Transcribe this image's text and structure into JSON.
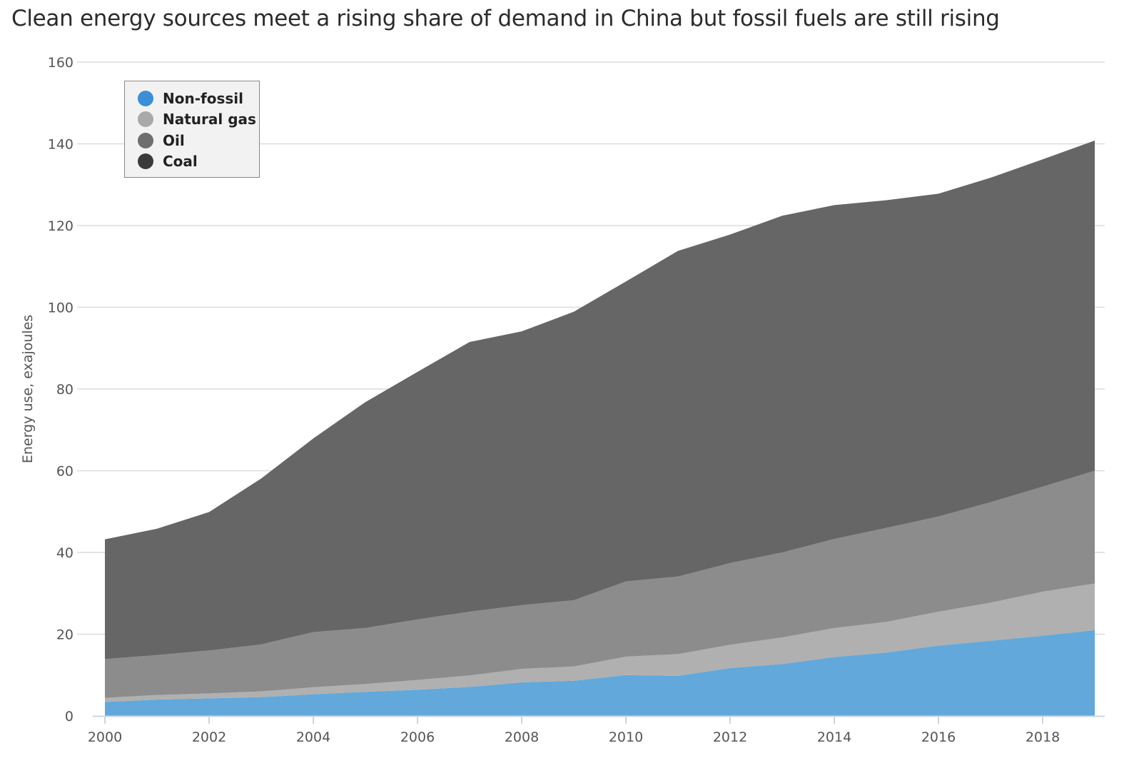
{
  "title": "Clean energy sources meet a rising share of demand in China but fossil fuels are still rising",
  "chart_data": {
    "type": "area",
    "stacked": true,
    "title": "Clean energy sources meet a rising share of demand in China but fossil fuels are still rising",
    "xlabel": "",
    "ylabel": "Energy use, exajoules",
    "xlim": [
      2000,
      2019
    ],
    "ylim": [
      0,
      160
    ],
    "yticks": [
      0,
      20,
      40,
      60,
      80,
      100,
      120,
      140,
      160
    ],
    "xticks": [
      2000,
      2002,
      2004,
      2006,
      2008,
      2010,
      2012,
      2014,
      2016,
      2018
    ],
    "grid": true,
    "legend_position": "top-left",
    "x": [
      2000,
      2001,
      2002,
      2003,
      2004,
      2005,
      2006,
      2007,
      2008,
      2009,
      2010,
      2011,
      2012,
      2013,
      2014,
      2015,
      2016,
      2017,
      2018,
      2019
    ],
    "series": [
      {
        "name": "Non-fossil",
        "color": "#62a8da",
        "legend_color": "#3a8fd6",
        "values": [
          3.4,
          4.0,
          4.3,
          4.6,
          5.3,
          5.9,
          6.4,
          7.1,
          8.2,
          8.6,
          10.0,
          9.8,
          11.7,
          12.7,
          14.4,
          15.5,
          17.2,
          18.4,
          19.6,
          21.0
        ]
      },
      {
        "name": "Natural gas",
        "color": "#b0b0b0",
        "legend_color": "#a9a9a9",
        "values": [
          1.0,
          1.1,
          1.2,
          1.4,
          1.7,
          1.9,
          2.4,
          2.8,
          3.3,
          3.5,
          4.5,
          5.3,
          5.7,
          6.5,
          7.1,
          7.5,
          8.3,
          9.3,
          10.8,
          11.4
        ]
      },
      {
        "name": "Oil",
        "color": "#8c8c8c",
        "legend_color": "#6e6e6e",
        "values": [
          9.5,
          9.8,
          10.5,
          11.5,
          13.5,
          13.7,
          14.8,
          15.6,
          15.6,
          16.2,
          18.4,
          19.0,
          20.0,
          20.8,
          21.8,
          23.0,
          23.3,
          24.6,
          25.7,
          27.6
        ]
      },
      {
        "name": "Coal",
        "color": "#666666",
        "legend_color": "#3a3a3a",
        "values": [
          29.3,
          30.9,
          33.9,
          40.6,
          47.4,
          55.3,
          60.6,
          66.0,
          67.0,
          70.6,
          73.4,
          79.7,
          80.4,
          82.4,
          81.7,
          80.2,
          79.0,
          79.4,
          80.1,
          80.8
        ]
      }
    ]
  }
}
